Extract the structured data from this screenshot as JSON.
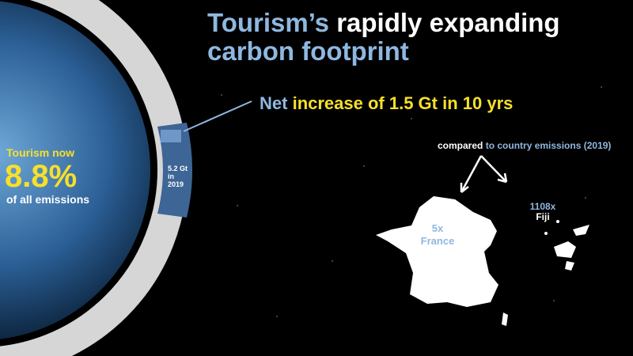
{
  "title": {
    "part1": "Tourism’s",
    "part2": "rapidly expanding",
    "part3": "carbon footprint"
  },
  "increase": {
    "part1": "Net",
    "part2": "increase of 1.5 Gt in 10 yrs"
  },
  "share": {
    "label": "Tourism now",
    "value": "8.8%",
    "caption": "of all emissions"
  },
  "segment": {
    "line1": "5.2 Gt",
    "line2": "in",
    "line3": "2019"
  },
  "comparison": {
    "part1": "compared",
    "part2": "to country emissions (2019)"
  },
  "countries": [
    {
      "factor": "5x",
      "name": "France"
    },
    {
      "factor": "1108x",
      "name": "Fiji"
    }
  ]
}
